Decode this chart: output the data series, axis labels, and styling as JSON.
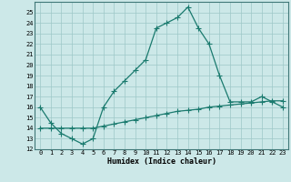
{
  "xlabel": "Humidex (Indice chaleur)",
  "x_values": [
    0,
    1,
    2,
    3,
    4,
    5,
    6,
    7,
    8,
    9,
    10,
    11,
    12,
    13,
    14,
    15,
    16,
    17,
    18,
    19,
    20,
    21,
    22,
    23
  ],
  "humidex_line": [
    16.0,
    14.5,
    13.5,
    13.0,
    12.5,
    13.0,
    16.0,
    17.5,
    18.5,
    19.5,
    20.5,
    23.5,
    24.0,
    24.5,
    25.5,
    23.5,
    22.0,
    19.0,
    16.5,
    16.5,
    16.5,
    17.0,
    16.5,
    16.0
  ],
  "flat_line": [
    14.0,
    14.0,
    14.0,
    14.0,
    14.0,
    14.0,
    14.2,
    14.4,
    14.6,
    14.8,
    15.0,
    15.2,
    15.4,
    15.6,
    15.7,
    15.8,
    16.0,
    16.1,
    16.2,
    16.3,
    16.4,
    16.5,
    16.6,
    16.6
  ],
  "line_color": "#1a7a6e",
  "bg_color": "#cce8e8",
  "grid_color": "#9dc8c8",
  "ylim": [
    12,
    26
  ],
  "yticks": [
    12,
    13,
    14,
    15,
    16,
    17,
    18,
    19,
    20,
    21,
    22,
    23,
    24,
    25
  ],
  "tick_fontsize": 5.0,
  "xlabel_fontsize": 6.0,
  "marker": "+",
  "marker_size": 4,
  "line_width": 0.9
}
